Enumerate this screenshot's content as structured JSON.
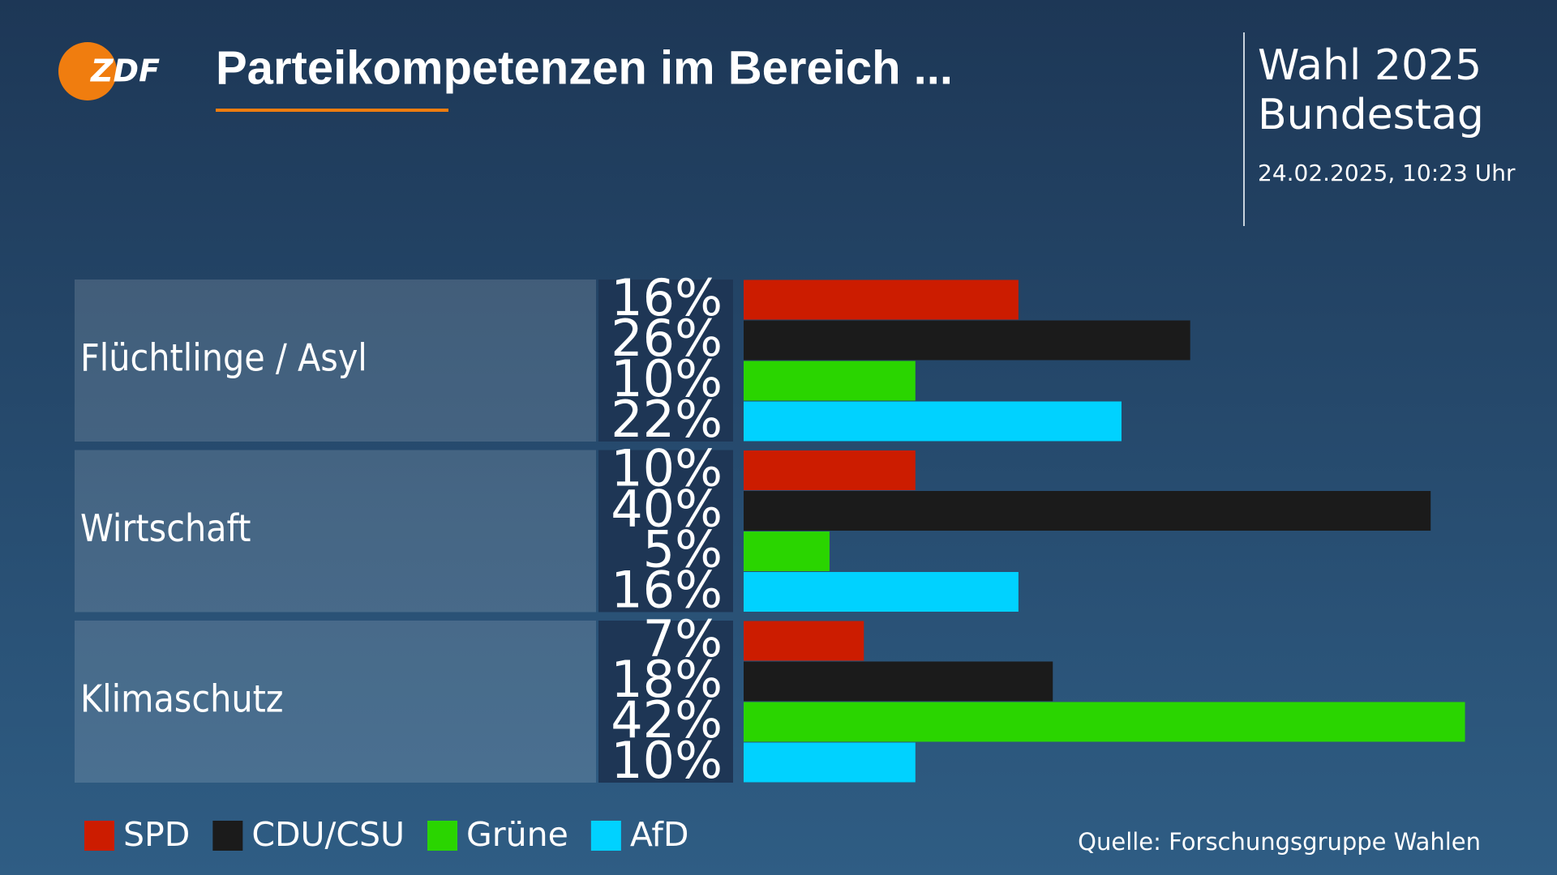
{
  "logo": "ZDF",
  "header": {
    "election": "Wahl 2025",
    "body": "Bundestag",
    "timestamp": "24.02.2025, 10:23 Uhr"
  },
  "chart_data": {
    "type": "bar",
    "orientation": "horizontal",
    "title": "Parteikompetenzen im Bereich ...",
    "categories": [
      "Flüchtlinge / Asyl",
      "Wirtschaft",
      "Klimaschutz"
    ],
    "series": [
      {
        "name": "SPD",
        "color": "#cc1c00",
        "values": [
          16,
          10,
          7
        ],
        "value_labels": [
          "16%",
          "10%",
          "7%"
        ]
      },
      {
        "name": "CDU/CSU",
        "color": "#1b1b1b",
        "values": [
          26,
          40,
          18
        ],
        "value_labels": [
          "26%",
          "40%",
          "18%"
        ]
      },
      {
        "name": "Grüne",
        "color": "#2ad500",
        "values": [
          10,
          5,
          42
        ],
        "value_labels": [
          "10%",
          "5%",
          "42%"
        ]
      },
      {
        "name": "AfD",
        "color": "#00d2ff",
        "values": [
          22,
          16,
          10
        ],
        "value_labels": [
          "22%",
          "16%",
          "10%"
        ]
      }
    ],
    "source": "Quelle: Forschungsgruppe Wahlen"
  }
}
